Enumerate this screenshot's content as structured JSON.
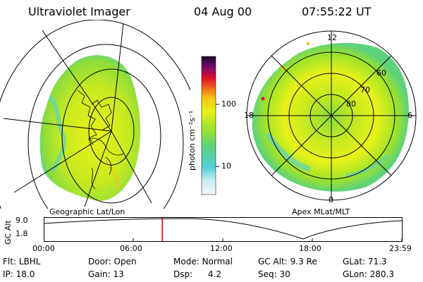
{
  "header": {
    "instrument": "Ultraviolet Imager",
    "date": "04 Aug 00",
    "time": "07:55:22  UT"
  },
  "panels": {
    "left_caption": "Geographic Lat/Lon",
    "right_caption": "Apex MLat/MLT"
  },
  "colorbar": {
    "unit_label": "photon cm⁻²s⁻¹",
    "ticks": [
      "100",
      "10"
    ]
  },
  "polar_plot": {
    "lat_labels": [
      "60",
      "70",
      "80"
    ],
    "mlt_labels": [
      "12",
      "18",
      "6",
      "0"
    ]
  },
  "altitude_plot": {
    "ylabel": "GC Alt",
    "ytick_top": "9.0",
    "ytick_bottom": "1.8",
    "xticks": [
      "00:00",
      "06:00",
      "12:00",
      "18:00",
      "23:59"
    ],
    "current_time_fraction": 0.33
  },
  "info": {
    "row1": {
      "flt_label": "Flt:",
      "flt_value": "LBHL",
      "door_label": "Door:",
      "door_value": "Open",
      "mode_label": "Mode:",
      "mode_value": "Normal",
      "gcalt_label": "GC Alt:",
      "gcalt_value": "9.3 Re",
      "glat_label": "GLat:",
      "glat_value": "71.3"
    },
    "row2": {
      "ip_label": "IP:",
      "ip_value": "18.0",
      "gain_label": "Gain:",
      "gain_value": "13",
      "dsp_label": "Dsp:",
      "dsp_value": "4.2",
      "seq_label": "Seq:",
      "seq_value": "30",
      "glon_label": "GLon:",
      "glon_value": "280.3"
    }
  },
  "colors": {
    "marker": "#e00000",
    "colormap": [
      "#f4f4f4",
      "#c9ecef",
      "#4fd0d6",
      "#5ed27a",
      "#9ee22a",
      "#e8f21a",
      "#f3c417",
      "#ef6a1a",
      "#e0112a",
      "#7a0a6a",
      "#1a0a2a"
    ]
  }
}
